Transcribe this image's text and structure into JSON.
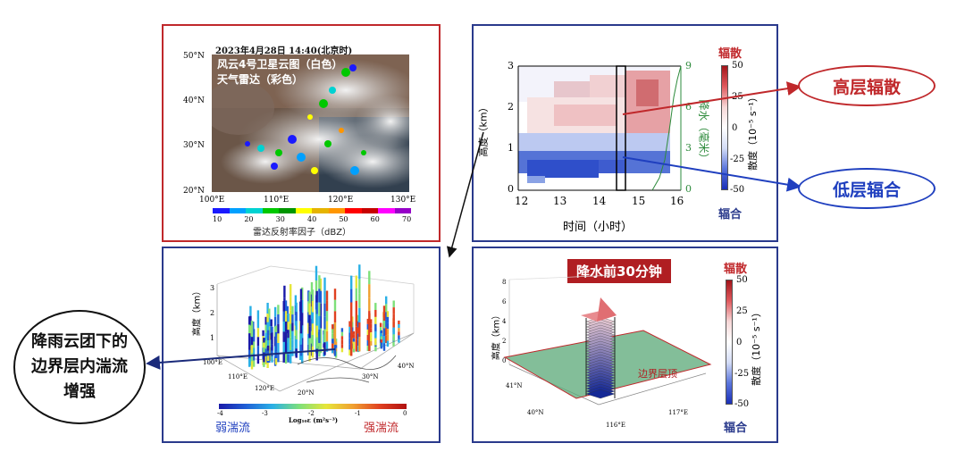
{
  "colors": {
    "red_frame": "#c0282b",
    "blue_frame": "#2a3a8c",
    "divergence_red": "#c0282b",
    "convergence_blue": "#1f3fbf",
    "precip_green": "#2e8b3c"
  },
  "satellite": {
    "timestamp": "2023年4月28日 14:40(北京时)",
    "label_satellite": "风云4号卫星云图（白色）",
    "label_radar": "天气雷达（彩色）",
    "lat_ticks": [
      "50°N",
      "40°N",
      "30°N",
      "20°N"
    ],
    "lon_ticks": [
      "100°E",
      "110°E",
      "120°E",
      "130°E"
    ],
    "colorbar_ticks": [
      "10",
      "20",
      "30",
      "40",
      "50",
      "60",
      "70"
    ],
    "colorbar_label": "雷达反射率因子（dBZ）",
    "colorbar_colors": [
      "#1a1aff",
      "#00a0ff",
      "#00d2d2",
      "#00c800",
      "#009600",
      "#ffff00",
      "#e6b400",
      "#ff9600",
      "#ff0000",
      "#c80000",
      "#ff00ff",
      "#9600c8"
    ]
  },
  "divergence_time_height": {
    "ylabel": "高度（km）",
    "xlabel": "时间（小时）",
    "y_ticks": [
      "0",
      "1",
      "2",
      "3"
    ],
    "x_ticks": [
      "12",
      "13",
      "14",
      "15",
      "16"
    ],
    "right_ticks": [
      "0",
      "3",
      "6",
      "9"
    ],
    "right_label": "降水（毫米）",
    "colorbar_top": "辐散",
    "colorbar_bottom": "辐合",
    "colorbar_ticks": [
      "50",
      "25",
      "0",
      "-25",
      "-50"
    ],
    "colorbar_label": "散度（10⁻⁵ s⁻¹）"
  },
  "callouts": {
    "high_divergence": "高层辐散",
    "low_convergence": "低层辐合",
    "turbulence": "降雨云团下的边界层内湍流增强"
  },
  "turbulence_3d": {
    "ylabel": "高度（km）",
    "z_ticks": [
      "1",
      "2",
      "3"
    ],
    "lon_ticks": [
      "100°E",
      "110°E",
      "120°E"
    ],
    "lat_ticks": [
      "20°N",
      "30°N",
      "40°N"
    ],
    "colorbar_ticks": [
      "-4",
      "-3",
      "-2",
      "-1",
      "0"
    ],
    "colorbar_label": "Log₁₀ε (m²s⁻³)",
    "weak_label": "弱湍流",
    "strong_label": "强湍流"
  },
  "pre_rain_3d": {
    "title": "降水前30分钟",
    "ylabel": "高度（km）",
    "z_ticks": [
      "0",
      "2",
      "4",
      "6",
      "8"
    ],
    "lat_ticks": [
      "41°N",
      "40°N"
    ],
    "lon_ticks": [
      "116°E",
      "117°E"
    ],
    "boundary_layer_label": "边界层顶",
    "colorbar_top": "辐散",
    "colorbar_bottom": "辐合",
    "colorbar_ticks": [
      "50",
      "25",
      "0",
      "-25",
      "-50"
    ],
    "colorbar_label": "散度（10⁻⁵ s⁻¹）"
  }
}
